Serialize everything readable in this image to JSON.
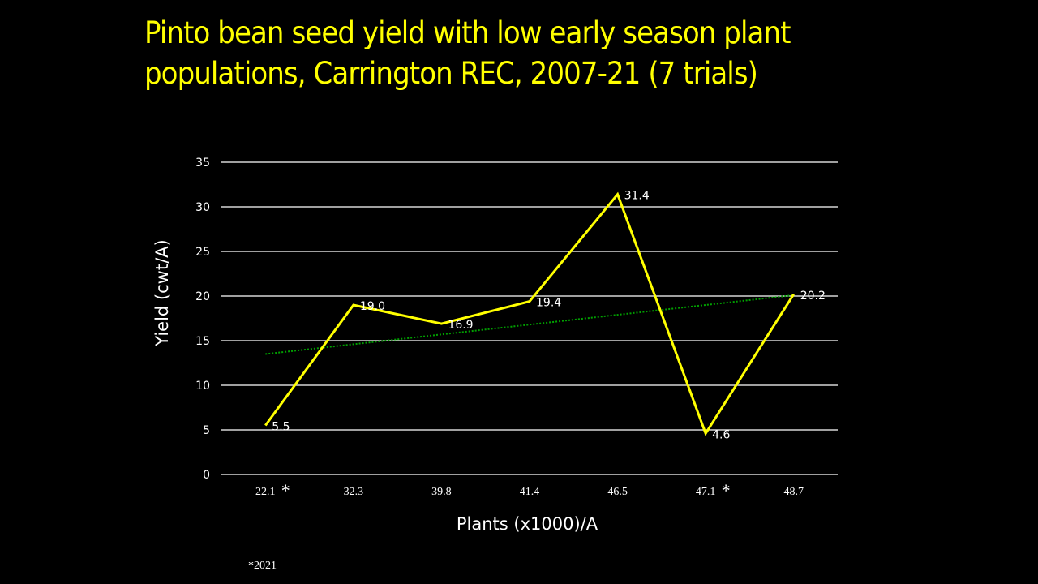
{
  "slide": {
    "title_line1": "Pinto bean seed yield with low early season plant",
    "title_line2": "populations, Carrington REC, 2007-21 (7 trials)",
    "footnote": "*2021"
  },
  "colors": {
    "background": "#000000",
    "title": "#ffff00",
    "series_line": "#ffff00",
    "trendline": "#00a000",
    "gridlines": "#ffffff",
    "text": "#ffffff"
  },
  "chart_data": {
    "type": "line",
    "title": "Pinto bean seed yield with low early season plant populations, Carrington REC, 2007-21 (7 trials)",
    "xlabel": "Plants (x1000)/A",
    "ylabel": "Yield (cwt/A)",
    "categories": [
      "22.1",
      "32.3",
      "39.8",
      "41.4",
      "46.5",
      "47.1",
      "48.7"
    ],
    "category_markers": [
      "*",
      "",
      "",
      "",
      "",
      "*",
      ""
    ],
    "series": [
      {
        "name": "Yield",
        "values": [
          5.5,
          19.0,
          16.9,
          19.4,
          31.4,
          4.6,
          20.2
        ],
        "labels": [
          "5.5",
          "19.0",
          "16.9",
          "19.4",
          "31.4",
          "4.6",
          "20.2"
        ]
      }
    ],
    "trendline": {
      "type": "linear",
      "style": "dotted",
      "start": 13.5,
      "end": 20.1
    },
    "ylim": [
      0,
      35
    ],
    "yticks": [
      0,
      5,
      10,
      15,
      20,
      25,
      30,
      35
    ],
    "grid": true,
    "legend": "none",
    "annotations": [
      "* = 2021"
    ]
  }
}
